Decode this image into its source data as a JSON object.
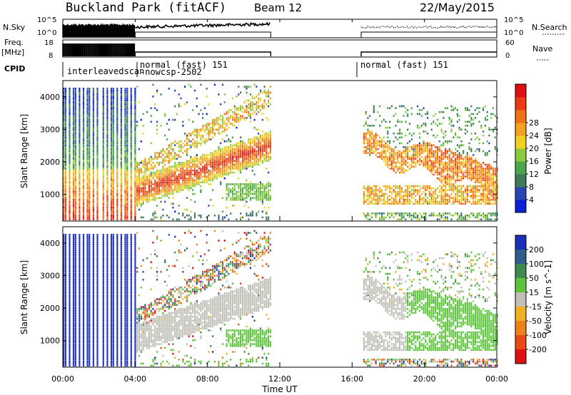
{
  "header": {
    "station": "Buckland Park (fitACF)",
    "beam": "Beam 12",
    "date": "22/May/2015"
  },
  "panels": {
    "nsky": {
      "left_label": "N.Sky",
      "right_label": "N.Search",
      "left_ticks": [
        "10^5",
        "10^0"
      ],
      "right_ticks": [
        "10^5",
        "10^0"
      ]
    },
    "freq": {
      "left_label_1": "Freq.",
      "left_label_2": "[MHz]",
      "right_label": "Nave",
      "left_ticks": [
        "18",
        "8"
      ],
      "right_ticks": [
        "60",
        "0"
      ]
    },
    "cpid": {
      "label": "CPID",
      "segments": [
        "interleavedscan",
        "normal (fast) 151",
        "-nowcsp-2502",
        "normal (fast) 151"
      ]
    }
  },
  "power_panel": {
    "ylabel": "Slant Range [km]",
    "y_ticks": [
      "1000",
      "2000",
      "3000",
      "4000"
    ],
    "colorbar_label": "Power [dB]",
    "colorbar_ticks": [
      "4",
      "8",
      "12",
      "16",
      "20",
      "24",
      "28"
    ],
    "colorbar_colors": [
      "#0a20d8",
      "#2a45b8",
      "#3d7a5a",
      "#4aa84a",
      "#8acb3a",
      "#f0d020",
      "#f5a020",
      "#f07018",
      "#ec3a14",
      "#e01010"
    ]
  },
  "velocity_panel": {
    "ylabel": "Slant Range [km]",
    "y_ticks": [
      "1000",
      "2000",
      "3000",
      "4000"
    ],
    "colorbar_label": "Velocity [m s^-1]",
    "colorbar_ticks": [
      "200",
      "100",
      "50",
      "15",
      "-15",
      "-50",
      "-100",
      "-200"
    ],
    "colorbar_colors": [
      "#1c2fb8",
      "#2d5e8c",
      "#3f8a4e",
      "#5cc43a",
      "#bfbfb6",
      "#f0b020",
      "#f08018",
      "#ec4814",
      "#e01010"
    ]
  },
  "x_axis": {
    "label": "Time UT",
    "ticks": [
      "00:00",
      "04:00",
      "08:00",
      "12:00",
      "16:00",
      "20:00",
      "00:00"
    ]
  },
  "chart_data": {
    "type": "heatmap",
    "title": "Buckland Park (fitACF)",
    "beam": "Beam 12",
    "date": "22/May/2015",
    "xlabel": "Time UT",
    "x_range_hours": [
      0,
      24
    ],
    "x_ticks": [
      "00:00",
      "04:00",
      "08:00",
      "12:00",
      "16:00",
      "20:00",
      "00:00"
    ],
    "data_gap_hours": [
      11.5,
      16.5
    ],
    "panels": [
      {
        "name": "Power",
        "ylabel": "Slant Range [km]",
        "ylim": [
          180,
          4500
        ],
        "units": "dB",
        "colorbar": [
          4,
          8,
          12,
          16,
          20,
          24,
          28
        ]
      },
      {
        "name": "Velocity",
        "ylabel": "Slant Range [km]",
        "ylim": [
          180,
          4500
        ],
        "units": "m s^-1",
        "colorbar": [
          200,
          100,
          50,
          15,
          -15,
          -50,
          -100,
          -200
        ]
      }
    ],
    "cpid_segments": [
      {
        "label": "interleavedscan",
        "start_h": 0.0,
        "end_h": 4.0
      },
      {
        "label": "normal (fast) 151",
        "start_h": 4.0,
        "end_h": 11.5
      },
      {
        "label": "-nowcsp-2502",
        "start_h": 4.0,
        "end_h": 11.5
      },
      {
        "label": "normal (fast) 151",
        "start_h": 16.5,
        "end_h": 24.0
      }
    ]
  }
}
